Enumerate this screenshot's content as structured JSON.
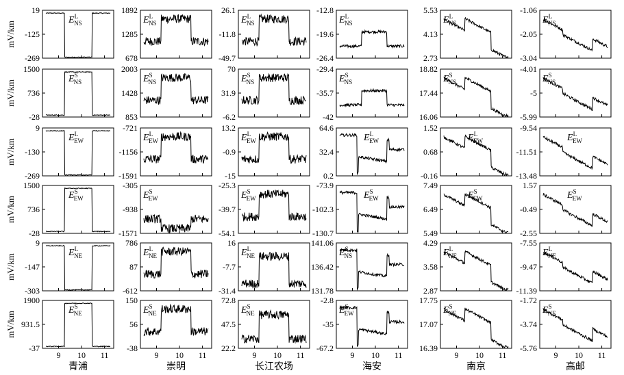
{
  "chart_data": {
    "type": "line",
    "ylabel": "mV/km",
    "x_ticks": [
      "9",
      "10",
      "11"
    ],
    "columns": [
      "青浦",
      "崇明",
      "长江农场",
      "海安",
      "南京",
      "高邮"
    ],
    "rows": [
      {
        "name": "NS",
        "sup": "L",
        "yticks": [
          [
            "19",
            "-125",
            "-269"
          ],
          [
            "1892",
            "1285",
            "678"
          ],
          [
            "26.1",
            "-11.8",
            "-49.7"
          ],
          [
            "-12.8",
            "-19.6",
            "-26.4"
          ],
          [
            "5.53",
            "4.13",
            "2.73"
          ],
          [
            "-1.06",
            "-2.05",
            "-3.04"
          ]
        ]
      },
      {
        "name": "NS",
        "sup": "S",
        "yticks": [
          [
            "1500",
            "736",
            "-28"
          ],
          [
            "2003",
            "1428",
            "853"
          ],
          [
            "70",
            "31.9",
            "-6.2"
          ],
          [
            "-29.4",
            "-35.7",
            "-42"
          ],
          [
            "18.82",
            "17.44",
            "16.06"
          ],
          [
            "-4.01",
            "-5",
            "-5.99"
          ]
        ]
      },
      {
        "name": "EW",
        "sup": "L",
        "yticks": [
          [
            "9",
            "-130",
            "-269"
          ],
          [
            "-721",
            "-1156",
            "-1591"
          ],
          [
            "13.2",
            "-0.9",
            "-15"
          ],
          [
            "64.6",
            "32.4",
            "0.2"
          ],
          [
            "1.52",
            "0.68",
            "-0.16"
          ],
          [
            "-9.54",
            "-11.51",
            "-13.48"
          ]
        ]
      },
      {
        "name": "EW",
        "sup": "S",
        "yticks": [
          [
            "1500",
            "736",
            "-28"
          ],
          [
            "-305",
            "-938",
            "-1571"
          ],
          [
            "-25.3",
            "-39.7",
            "-54.1"
          ],
          [
            "-73.9",
            "-102.3",
            "-130.7"
          ],
          [
            "7.49",
            "6.49",
            "5.49"
          ],
          [
            "1.57",
            "-0.49",
            "-2.55"
          ]
        ]
      },
      {
        "name": "NE",
        "sup": "L",
        "yticks": [
          [
            "9",
            "-147",
            "-303"
          ],
          [
            "786",
            "87",
            "-612"
          ],
          [
            "16",
            "-7.7",
            "-31.4"
          ],
          [
            "141.06",
            "136.42",
            "131.78"
          ],
          [
            "4.29",
            "3.58",
            "2.87"
          ],
          [
            "-7.55",
            "-9.47",
            "-11.39"
          ]
        ]
      },
      {
        "name": "NE",
        "sup": "S",
        "yticks": [
          [
            "1900",
            "931.5",
            "-37"
          ],
          [
            "150",
            "56",
            "-38"
          ],
          [
            "72.8",
            "47.5",
            "22.2"
          ],
          [
            "-2.8",
            "-35",
            "-67.2"
          ],
          [
            "17.75",
            "17.07",
            "16.39"
          ],
          [
            "-1.72",
            "-3.74",
            "-5.76"
          ]
        ]
      }
    ],
    "panel_labels": [
      [
        {
          "sub": "NS",
          "sup": "L"
        },
        {
          "sub": "NS",
          "sup": "L"
        },
        {
          "sub": "NS",
          "sup": "L"
        },
        {
          "sub": "NS",
          "sup": "L"
        },
        {
          "sub": "NS",
          "sup": "L"
        },
        {
          "sub": "NS",
          "sup": "L"
        }
      ],
      [
        {
          "sub": "NS",
          "sup": "S"
        },
        {
          "sub": "NS",
          "sup": "S"
        },
        {
          "sub": "NS",
          "sup": "S"
        },
        {
          "sub": "NS",
          "sup": "S"
        },
        {
          "sub": "NS",
          "sup": "S"
        },
        {
          "sub": "NS",
          "sup": "S"
        }
      ],
      [
        {
          "sub": "EW",
          "sup": "L"
        },
        {
          "sub": "EW",
          "sup": "L"
        },
        {
          "sub": "EW",
          "sup": "L"
        },
        {
          "sub": "EW",
          "sup": "L"
        },
        {
          "sub": "EW",
          "sup": "L"
        },
        {
          "sub": "EW",
          "sup": "L"
        }
      ],
      [
        {
          "sub": "EW",
          "sup": "S"
        },
        {
          "sub": "EW",
          "sup": "S"
        },
        {
          "sub": "EW",
          "sup": "S"
        },
        {
          "sub": "EW",
          "sup": "S"
        },
        {
          "sub": "EW",
          "sup": "S"
        },
        {
          "sub": "EW",
          "sup": "S"
        }
      ],
      [
        {
          "sub": "NE",
          "sup": "L"
        },
        {
          "sub": "NE",
          "sup": "L"
        },
        {
          "sub": "NE",
          "sup": "L"
        },
        {
          "sub": "NS",
          "sup": "S"
        },
        {
          "sub": "NE",
          "sup": "L"
        },
        {
          "sub": "NE",
          "sup": "L"
        }
      ],
      [
        {
          "sub": "NE",
          "sup": "S"
        },
        {
          "sub": "NE",
          "sup": "S"
        },
        {
          "sub": "NE",
          "sup": "S"
        },
        {
          "sub": "EW",
          "sup": "S"
        },
        {
          "sub": "NE",
          "sup": "S"
        },
        {
          "sub": "NE",
          "sup": "S"
        }
      ]
    ],
    "x_range": [
      8.3,
      11.4
    ],
    "grid": false,
    "line_color": "#000000"
  }
}
